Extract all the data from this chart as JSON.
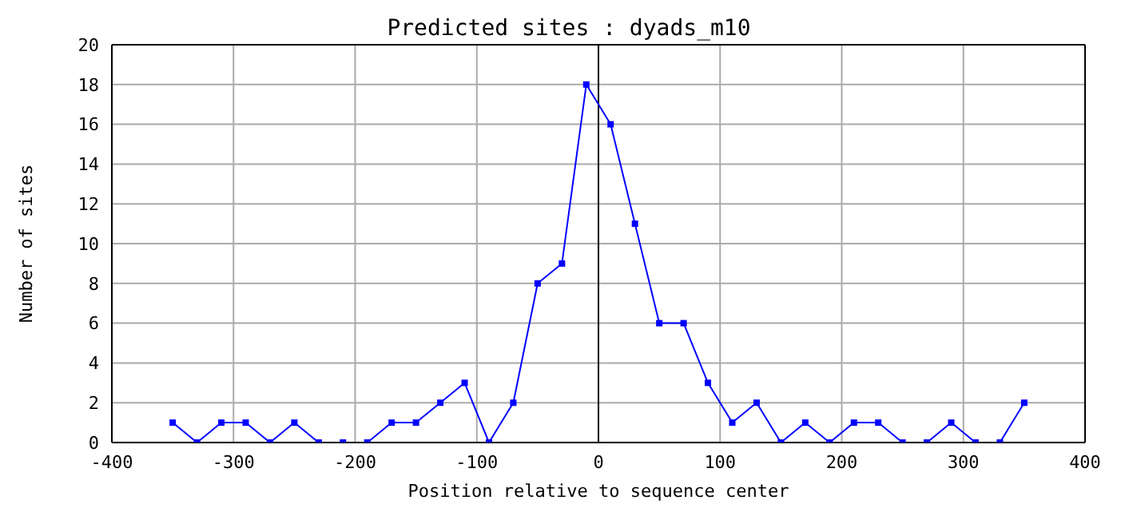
{
  "chart_data": {
    "type": "line",
    "title": "Predicted sites : dyads_m10",
    "xlabel": "Position relative to sequence center",
    "ylabel": "Number of sites",
    "x": [
      -350,
      -330,
      -310,
      -290,
      -270,
      -250,
      -230,
      -210,
      -190,
      -170,
      -150,
      -130,
      -110,
      -90,
      -70,
      -50,
      -30,
      -10,
      10,
      30,
      50,
      70,
      90,
      110,
      130,
      150,
      170,
      190,
      210,
      230,
      250,
      270,
      290,
      310,
      330,
      350
    ],
    "series": [
      {
        "color": "#0000ff",
        "values": [
          1,
          0,
          1,
          1,
          0,
          1,
          0,
          0,
          0,
          1,
          1,
          2,
          3,
          0,
          2,
          8,
          9,
          18,
          16,
          11,
          6,
          6,
          3,
          1,
          2,
          0,
          1,
          0,
          1,
          1,
          0,
          0,
          1,
          0,
          0,
          2
        ]
      }
    ],
    "xlim": [
      -400,
      400
    ],
    "xticks": [
      -400,
      -300,
      -200,
      -100,
      0,
      100,
      200,
      300,
      400
    ],
    "ylim": [
      0,
      20
    ],
    "yticks": [
      0,
      2,
      4,
      6,
      8,
      10,
      12,
      14,
      16,
      18,
      20
    ],
    "ref_lines": [
      {
        "axis": "x",
        "value": 0,
        "color": "#000000"
      }
    ],
    "grid": true,
    "marker": "square",
    "line_style": "solid",
    "legend": false
  }
}
